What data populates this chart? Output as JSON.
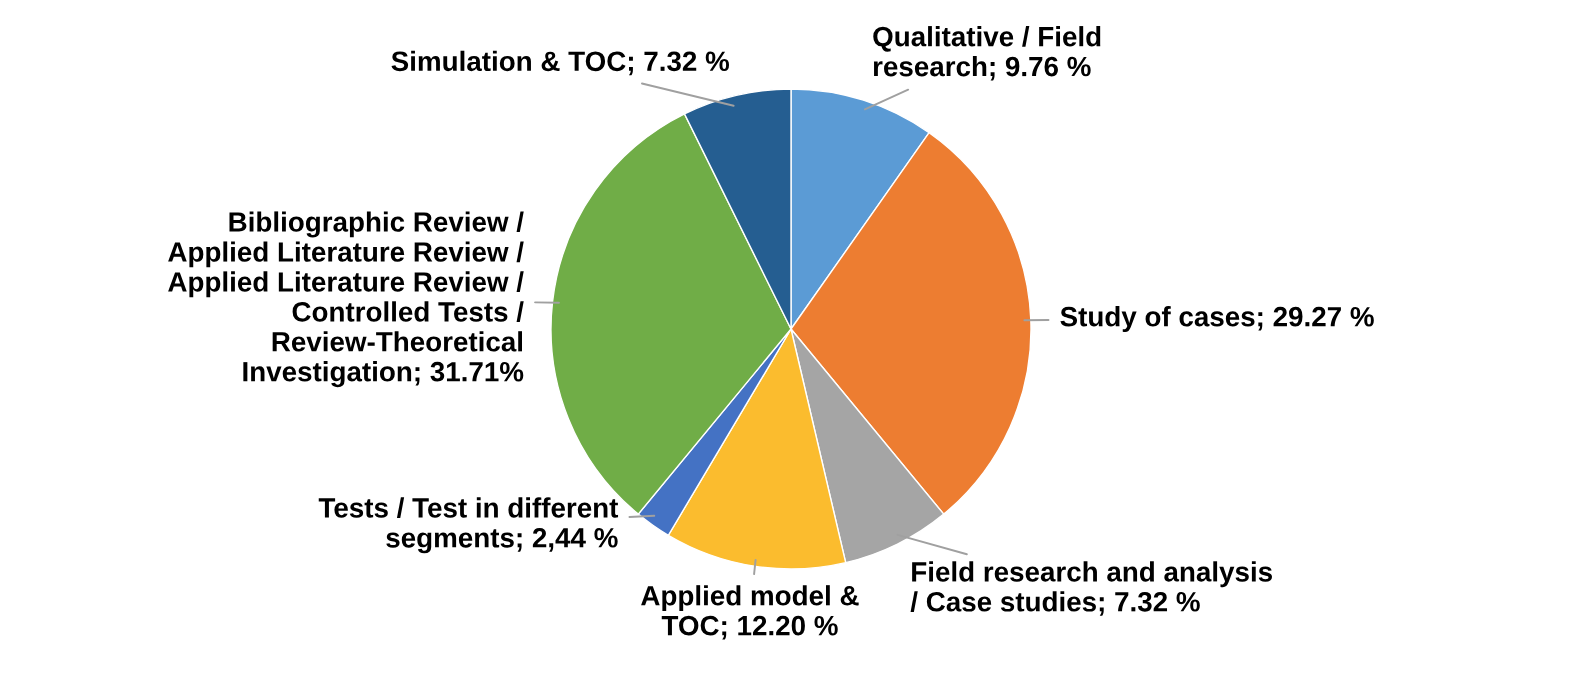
{
  "chart_data": {
    "type": "pie",
    "categories": [
      "Qualitative / Field research",
      "Study of cases",
      "Field research and analysis / Case studies",
      "Applied model & TOC",
      "Tests / Test in different segments",
      "Bibliographic Review / Applied Literature Review / Applied Literature Review / Controlled Tests / Review-Theoretical Investigation",
      "Simulation & TOC"
    ],
    "values": [
      9.76,
      29.27,
      7.32,
      12.2,
      2.44,
      31.71,
      7.32
    ],
    "value_labels": [
      "9.76 %",
      "29.27 %",
      "7.32 %",
      "12.20 %",
      "2,44 %",
      "31.71%",
      "7.32 %"
    ],
    "colors": [
      "#5b9bd5",
      "#ed7d31",
      "#a5a5a5",
      "#fbbc2e",
      "#4472c4",
      "#70ad47",
      "#255e91"
    ],
    "legend": false
  }
}
